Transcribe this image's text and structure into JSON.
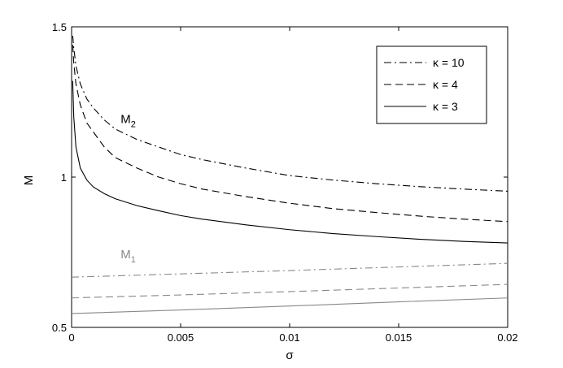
{
  "chart_data": {
    "type": "line",
    "title": "",
    "xlabel": "σ",
    "ylabel": "M",
    "xlim": [
      0,
      0.02
    ],
    "ylim": [
      0.5,
      1.5
    ],
    "grid": false,
    "legend_position": "top-right",
    "x_ticks": [
      {
        "value": 0,
        "label": "0"
      },
      {
        "value": 0.005,
        "label": "0.005"
      },
      {
        "value": 0.01,
        "label": "0.01"
      },
      {
        "value": 0.015,
        "label": "0.015"
      },
      {
        "value": 0.02,
        "label": "0.02"
      }
    ],
    "y_ticks": [
      {
        "value": 0.5,
        "label": "0.5"
      },
      {
        "value": 1,
        "label": "1"
      },
      {
        "value": 1.5,
        "label": "1.5"
      }
    ],
    "legend": [
      {
        "label": "κ = 10",
        "style": "dashdot",
        "color": "#000000"
      },
      {
        "label": "κ = 4",
        "style": "dashed",
        "color": "#000000"
      },
      {
        "label": "κ = 3",
        "style": "solid",
        "color": "#000000"
      }
    ],
    "annotations": [
      {
        "text": "M",
        "sub": "2",
        "x": 0.00225,
        "y": 1.18,
        "color": "#000000"
      },
      {
        "text": "M",
        "sub": "1",
        "x": 0.00225,
        "y": 0.73,
        "color": "#888888"
      }
    ],
    "series": [
      {
        "kappa": 10,
        "branch": "M2",
        "style": "dashdot",
        "color": "#000000",
        "x": [
          5e-05,
          0.0001,
          0.0002,
          0.0004,
          0.0007,
          0.001,
          0.0015,
          0.002,
          0.003,
          0.004,
          0.005,
          0.006,
          0.008,
          0.01,
          0.012,
          0.014,
          0.016,
          0.018,
          0.02
        ],
        "y": [
          1.47,
          1.43,
          1.37,
          1.31,
          1.26,
          1.23,
          1.19,
          1.16,
          1.125,
          1.1,
          1.075,
          1.058,
          1.03,
          1.005,
          0.99,
          0.978,
          0.968,
          0.96,
          0.953
        ]
      },
      {
        "kappa": 4,
        "branch": "M2",
        "style": "dashed",
        "color": "#000000",
        "x": [
          5e-05,
          0.0001,
          0.0002,
          0.0004,
          0.0007,
          0.001,
          0.0015,
          0.002,
          0.003,
          0.004,
          0.005,
          0.006,
          0.008,
          0.01,
          0.012,
          0.014,
          0.016,
          0.018,
          0.02
        ],
        "y": [
          1.44,
          1.38,
          1.31,
          1.24,
          1.18,
          1.15,
          1.1,
          1.065,
          1.03,
          1.0,
          0.978,
          0.96,
          0.935,
          0.913,
          0.895,
          0.882,
          0.87,
          0.86,
          0.852
        ]
      },
      {
        "kappa": 3,
        "branch": "M2",
        "style": "solid",
        "color": "#000000",
        "x": [
          5e-05,
          0.0001,
          0.0002,
          0.0004,
          0.0007,
          0.001,
          0.0015,
          0.002,
          0.003,
          0.004,
          0.005,
          0.006,
          0.008,
          0.01,
          0.012,
          0.014,
          0.016,
          0.018,
          0.02
        ],
        "y": [
          1.32,
          1.2,
          1.1,
          1.03,
          0.99,
          0.967,
          0.945,
          0.928,
          0.905,
          0.888,
          0.872,
          0.86,
          0.841,
          0.825,
          0.812,
          0.802,
          0.793,
          0.786,
          0.781
        ]
      },
      {
        "kappa": 10,
        "branch": "M1",
        "style": "dashdot",
        "color": "#888888",
        "x": [
          0,
          0.005,
          0.01,
          0.015,
          0.02
        ],
        "y": [
          0.667,
          0.678,
          0.689,
          0.701,
          0.713
        ]
      },
      {
        "kappa": 4,
        "branch": "M1",
        "style": "dashed",
        "color": "#888888",
        "x": [
          0,
          0.005,
          0.01,
          0.015,
          0.02
        ],
        "y": [
          0.598,
          0.608,
          0.619,
          0.631,
          0.643
        ]
      },
      {
        "kappa": 3,
        "branch": "M1",
        "style": "solid",
        "color": "#888888",
        "x": [
          0,
          0.005,
          0.01,
          0.015,
          0.02
        ],
        "y": [
          0.546,
          0.558,
          0.571,
          0.585,
          0.598
        ]
      }
    ]
  }
}
